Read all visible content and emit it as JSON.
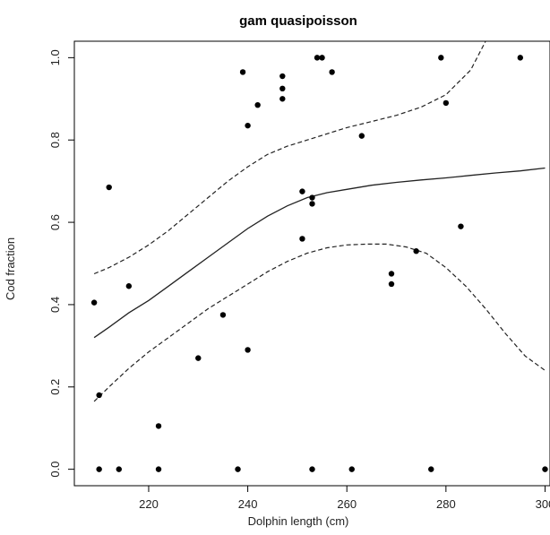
{
  "chart_data": {
    "type": "scatter",
    "title": "gam quasipoisson",
    "xlabel": "Dolphin length (cm)",
    "ylabel": "Cod fraction",
    "xlim": [
      205,
      301
    ],
    "ylim": [
      -0.04,
      1.04
    ],
    "x_ticks": [
      220,
      240,
      260,
      280,
      300
    ],
    "x_tick_labels": [
      "220",
      "240",
      "260",
      "280",
      "300"
    ],
    "y_ticks": [
      0.0,
      0.2,
      0.4,
      0.6,
      0.8,
      1.0
    ],
    "y_tick_labels": [
      "0.0",
      "0.2",
      "0.4",
      "0.6",
      "0.8",
      "1.0"
    ],
    "grid": false,
    "points": [
      {
        "x": 209,
        "y": 0.405
      },
      {
        "x": 210,
        "y": 0.18
      },
      {
        "x": 210,
        "y": 0.0
      },
      {
        "x": 212,
        "y": 0.685
      },
      {
        "x": 214,
        "y": 0.0
      },
      {
        "x": 216,
        "y": 0.445
      },
      {
        "x": 222,
        "y": 0.105
      },
      {
        "x": 222,
        "y": 0.0
      },
      {
        "x": 230,
        "y": 0.27
      },
      {
        "x": 235,
        "y": 0.375
      },
      {
        "x": 238,
        "y": 0.0
      },
      {
        "x": 239,
        "y": 0.965
      },
      {
        "x": 240,
        "y": 0.835
      },
      {
        "x": 240,
        "y": 0.29
      },
      {
        "x": 242,
        "y": 0.885
      },
      {
        "x": 247,
        "y": 0.955
      },
      {
        "x": 247,
        "y": 0.925
      },
      {
        "x": 247,
        "y": 0.9
      },
      {
        "x": 251,
        "y": 0.675
      },
      {
        "x": 251,
        "y": 0.56
      },
      {
        "x": 253,
        "y": 0.66
      },
      {
        "x": 253,
        "y": 0.645
      },
      {
        "x": 253,
        "y": 0.0
      },
      {
        "x": 254,
        "y": 1.0
      },
      {
        "x": 255,
        "y": 1.0
      },
      {
        "x": 257,
        "y": 0.965
      },
      {
        "x": 261,
        "y": 0.0
      },
      {
        "x": 263,
        "y": 0.81
      },
      {
        "x": 269,
        "y": 0.475
      },
      {
        "x": 269,
        "y": 0.45
      },
      {
        "x": 274,
        "y": 0.53
      },
      {
        "x": 277,
        "y": 0.0
      },
      {
        "x": 279,
        "y": 1.0
      },
      {
        "x": 280,
        "y": 0.89
      },
      {
        "x": 283,
        "y": 0.59
      },
      {
        "x": 295,
        "y": 1.0
      },
      {
        "x": 300,
        "y": 0.0
      }
    ],
    "series": [
      {
        "style": "solid",
        "x": [
          209,
          212,
          216,
          220,
          224,
          228,
          232,
          236,
          240,
          244,
          248,
          252,
          256,
          260,
          265,
          270,
          275,
          280,
          285,
          290,
          295,
          300
        ],
        "y": [
          0.32,
          0.345,
          0.38,
          0.41,
          0.445,
          0.48,
          0.515,
          0.55,
          0.585,
          0.615,
          0.64,
          0.66,
          0.672,
          0.68,
          0.69,
          0.697,
          0.703,
          0.708,
          0.714,
          0.72,
          0.725,
          0.732
        ]
      },
      {
        "style": "dashed",
        "x": [
          209,
          212,
          216,
          220,
          224,
          228,
          232,
          236,
          240,
          244,
          248,
          252,
          256,
          260,
          265,
          270,
          275,
          280,
          285,
          288
        ],
        "y": [
          0.475,
          0.49,
          0.515,
          0.545,
          0.58,
          0.62,
          0.66,
          0.7,
          0.735,
          0.765,
          0.785,
          0.8,
          0.815,
          0.83,
          0.845,
          0.86,
          0.88,
          0.91,
          0.97,
          1.04
        ]
      },
      {
        "style": "dashed",
        "x": [
          209,
          212,
          216,
          220,
          224,
          228,
          232,
          236,
          240,
          244,
          248,
          252,
          256,
          260,
          264,
          268,
          272,
          276,
          280,
          284,
          288,
          292,
          296,
          300
        ],
        "y": [
          0.165,
          0.2,
          0.245,
          0.285,
          0.32,
          0.355,
          0.39,
          0.42,
          0.45,
          0.48,
          0.505,
          0.525,
          0.538,
          0.545,
          0.547,
          0.547,
          0.54,
          0.525,
          0.49,
          0.445,
          0.39,
          0.33,
          0.275,
          0.24
        ]
      }
    ]
  }
}
